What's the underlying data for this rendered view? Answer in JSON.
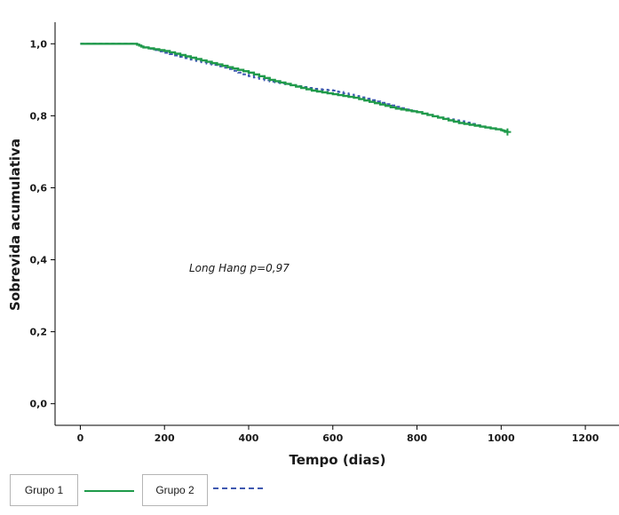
{
  "chart_data": {
    "type": "line",
    "title": "",
    "xlabel": "Tempo (dias)",
    "ylabel": "Sobrevida acumulativa",
    "xlim": [
      -60,
      1280
    ],
    "ylim": [
      -0.06,
      1.06
    ],
    "x_ticks": [
      0,
      200,
      400,
      600,
      800,
      1000,
      1200
    ],
    "x_tick_labels": [
      "0",
      "200",
      "400",
      "600",
      "800",
      "1000",
      "1200"
    ],
    "y_ticks": [
      0.0,
      0.2,
      0.4,
      0.6,
      0.8,
      1.0
    ],
    "y_tick_labels": [
      "0,0",
      "0,2",
      "0,4",
      "0,6",
      "0,8",
      "1,0"
    ],
    "grid": false,
    "legend": "bottom-left",
    "annotation": "Long Hang p=0,97",
    "series": [
      {
        "name": "Grupo 1",
        "color": "#1f9a4a",
        "style": "solid",
        "x": [
          0,
          130,
          150,
          200,
          250,
          300,
          350,
          400,
          450,
          500,
          550,
          600,
          650,
          700,
          750,
          800,
          850,
          900,
          950,
          1000,
          1015
        ],
        "y": [
          1.0,
          1.0,
          0.99,
          0.98,
          0.965,
          0.95,
          0.935,
          0.92,
          0.9,
          0.885,
          0.87,
          0.86,
          0.85,
          0.835,
          0.82,
          0.81,
          0.795,
          0.78,
          0.77,
          0.76,
          0.755
        ]
      },
      {
        "name": "Grupo 2",
        "color": "#3f58b0",
        "style": "dashed",
        "x": [
          0,
          130,
          150,
          200,
          250,
          300,
          350,
          400,
          450,
          500,
          550,
          600,
          650,
          700,
          750,
          800,
          850,
          900,
          950,
          1000,
          1015
        ],
        "y": [
          1.0,
          1.0,
          0.99,
          0.975,
          0.96,
          0.945,
          0.93,
          0.91,
          0.895,
          0.885,
          0.875,
          0.87,
          0.855,
          0.84,
          0.825,
          0.81,
          0.795,
          0.785,
          0.77,
          0.76,
          0.755
        ]
      }
    ]
  }
}
